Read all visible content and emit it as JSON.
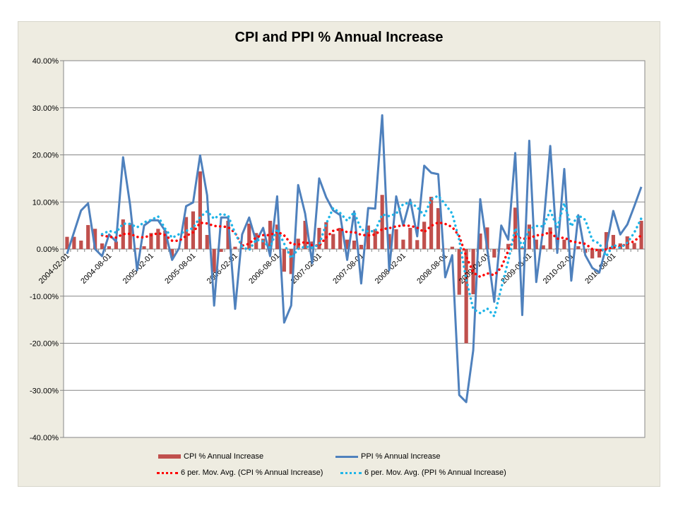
{
  "chart_data": {
    "type": "bar",
    "title": "CPI and PPI % Annual Increase",
    "xlabel": "",
    "ylabel": "",
    "ylim": [
      -40,
      40
    ],
    "yticks": [
      "-40.00%",
      "-30.00%",
      "-20.00%",
      "-10.00%",
      "0.00%",
      "10.00%",
      "20.00%",
      "30.00%",
      "40.00%"
    ],
    "ytick_values": [
      -40,
      -30,
      -20,
      -10,
      0,
      10,
      20,
      30,
      40
    ],
    "grid": "horizontal",
    "legend_position": "bottom",
    "start_month": "2004-02",
    "xtick_labels": [
      "2004-02-01",
      "2004-08-01",
      "2005-02-01",
      "2005-08-01",
      "2006-02-01",
      "2006-08-01",
      "2007-02-01",
      "2007-08-01",
      "2008-02-01",
      "2008-08-01",
      "2009-02-01",
      "2009-08-01",
      "2010-02-01",
      "2010-08-01"
    ],
    "series": [
      {
        "name": "CPI % Annual Increase",
        "type": "bar",
        "color": "#C0504D",
        "values": [
          2.6,
          2.6,
          1.8,
          5.1,
          4.3,
          1.2,
          0.6,
          1.6,
          6.3,
          5.5,
          0.2,
          0.6,
          3.4,
          4.3,
          3.9,
          -1.8,
          0.1,
          6.8,
          8.0,
          16.5,
          3.0,
          -4.9,
          -0.6,
          6.0,
          0.5,
          0.3,
          5.4,
          3.4,
          2.2,
          6.0,
          5.2,
          -4.8,
          -5.3,
          2.2,
          6.0,
          1.6,
          4.5,
          5.7,
          3.2,
          4.5,
          2.0,
          1.8,
          0.9,
          5.0,
          4.2,
          11.5,
          3.2,
          4.2,
          2.0,
          4.5,
          1.9,
          5.8,
          11.1,
          8.7,
          0.1,
          0.5,
          -9.7,
          -20.0,
          -9.6,
          3.3,
          4.6,
          -1.8,
          0.1,
          1.1,
          8.8,
          0.3,
          5.2,
          2.0,
          0.8,
          4.6,
          0.2,
          2.0,
          0.1,
          0.6,
          -0.8,
          -2.0,
          -1.8,
          3.6,
          3.0,
          1.2,
          2.7,
          1.3,
          6.0
        ]
      },
      {
        "name": "PPI % Annual Increase",
        "type": "line",
        "color": "#4F81BD",
        "values": [
          -1.0,
          3.6,
          8.2,
          9.7,
          0.0,
          -1.5,
          3.1,
          1.6,
          19.5,
          9.4,
          -4.5,
          5.0,
          6.1,
          6.1,
          3.9,
          -2.3,
          0.2,
          9.1,
          9.9,
          19.9,
          11.4,
          -12.0,
          6.7,
          6.7,
          -12.7,
          3.1,
          6.7,
          1.6,
          4.5,
          -1.5,
          11.2,
          -15.6,
          -12.0,
          13.6,
          7.5,
          -3.0,
          15.0,
          11.0,
          8.2,
          7.2,
          -2.3,
          8.0,
          -7.3,
          8.7,
          8.6,
          28.4,
          -4.5,
          11.2,
          5.0,
          10.5,
          2.7,
          17.7,
          16.2,
          15.9,
          -6.0,
          -1.3,
          -31.0,
          -32.5,
          -21.5,
          10.6,
          0.0,
          -11.2,
          5.0,
          2.0,
          20.4,
          -14.0,
          23.0,
          -7.0,
          4.5,
          21.9,
          -0.8,
          17.0,
          -6.7,
          7.2,
          -1.3,
          -4.0,
          -5.0,
          0.5,
          8.1,
          3.1,
          5.2,
          9.1,
          13.2
        ]
      },
      {
        "name": "6 per. Mov. Avg. (CPI % Annual Increase)",
        "type": "moving-average",
        "period": 6,
        "of": "CPI % Annual Increase",
        "color": "#FF0000"
      },
      {
        "name": "6 per. Mov. Avg. (PPI % Annual Increase)",
        "type": "moving-average",
        "period": 6,
        "of": "PPI % Annual Increase",
        "color": "#1FB5E8"
      }
    ]
  }
}
